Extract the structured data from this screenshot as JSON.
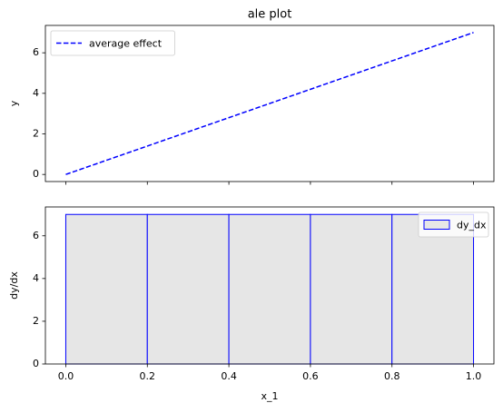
{
  "chart_data": [
    {
      "type": "line",
      "title": "ale plot",
      "ylabel": "y",
      "x": [
        0,
        0.2,
        0.4,
        0.6,
        0.8,
        1.0
      ],
      "series": [
        {
          "name": "average effect",
          "color": "#0000ff",
          "linestyle": "dashed",
          "values": [
            0,
            1.4,
            2.8,
            4.2,
            5.6,
            7.0
          ]
        }
      ],
      "xlim": [
        -0.05,
        1.05
      ],
      "ylim": [
        -0.35,
        7.35
      ],
      "xticks": [
        0,
        0.2,
        0.4,
        0.6,
        0.8,
        1.0
      ],
      "show_xtick_labels": false,
      "yticks": [
        0,
        2,
        4,
        6
      ],
      "legend": "upper left"
    },
    {
      "type": "histogram",
      "xlabel": "x_1",
      "ylabel": "dy/dx",
      "bins": [
        0,
        0.2,
        0.4,
        0.6,
        0.8,
        1.0
      ],
      "series": [
        {
          "name": "dy_dx",
          "color": "#0000ff",
          "fill": "#e6e6e6",
          "values": [
            7,
            7,
            7,
            7,
            7
          ]
        }
      ],
      "xlim": [
        -0.05,
        1.05
      ],
      "ylim": [
        0,
        7.35
      ],
      "xticks": [
        {
          "value": 0,
          "label": "0.0"
        },
        {
          "value": 0.2,
          "label": "0.2"
        },
        {
          "value": 0.4,
          "label": "0.4"
        },
        {
          "value": 0.6,
          "label": "0.6"
        },
        {
          "value": 0.8,
          "label": "0.8"
        },
        {
          "value": 1.0,
          "label": "1.0"
        }
      ],
      "show_xtick_labels": true,
      "yticks": [
        0,
        2,
        4,
        6
      ],
      "legend": "upper right"
    }
  ]
}
